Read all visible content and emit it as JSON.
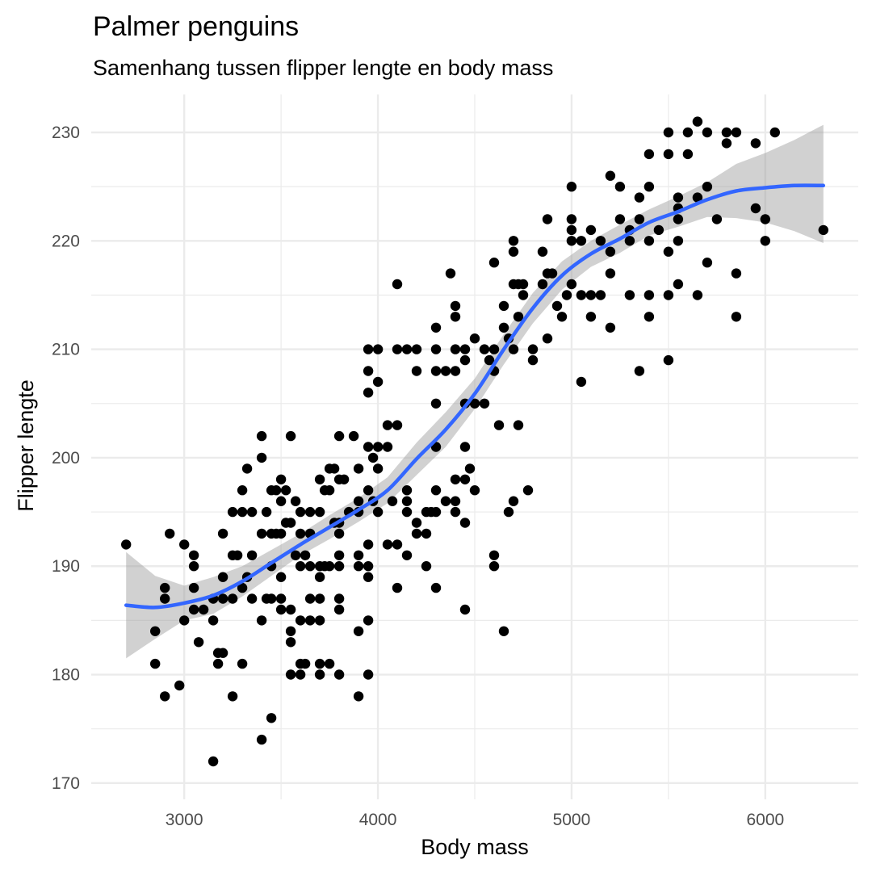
{
  "chart_data": {
    "type": "scatter",
    "title": "Palmer penguins",
    "subtitle": "Samenhang tussen flipper lengte en body mass",
    "xlabel": "Body mass",
    "ylabel": "Flipper lengte",
    "xlim": [
      2520,
      6480
    ],
    "ylim": [
      168.5,
      233.5
    ],
    "x_ticks": [
      3000,
      4000,
      5000,
      6000
    ],
    "y_ticks": [
      170,
      180,
      190,
      200,
      210,
      220,
      230
    ],
    "grid": true,
    "points": [
      [
        2700,
        192
      ],
      [
        2850,
        184
      ],
      [
        2850,
        181
      ],
      [
        2900,
        188
      ],
      [
        2900,
        187
      ],
      [
        2900,
        178
      ],
      [
        2925,
        193
      ],
      [
        2975,
        179
      ],
      [
        3000,
        192
      ],
      [
        3000,
        185
      ],
      [
        3050,
        190
      ],
      [
        3050,
        191
      ],
      [
        3050,
        186
      ],
      [
        3050,
        188
      ],
      [
        3075,
        183
      ],
      [
        3100,
        186
      ],
      [
        3150,
        187
      ],
      [
        3150,
        185
      ],
      [
        3150,
        172
      ],
      [
        3175,
        182
      ],
      [
        3175,
        181
      ],
      [
        3200,
        182
      ],
      [
        3200,
        193
      ],
      [
        3200,
        189
      ],
      [
        3200,
        187
      ],
      [
        3250,
        187
      ],
      [
        3250,
        191
      ],
      [
        3250,
        178
      ],
      [
        3250,
        195
      ],
      [
        3275,
        191
      ],
      [
        3300,
        197
      ],
      [
        3300,
        195
      ],
      [
        3300,
        181
      ],
      [
        3300,
        188
      ],
      [
        3325,
        199
      ],
      [
        3325,
        189
      ],
      [
        3350,
        195
      ],
      [
        3350,
        187
      ],
      [
        3350,
        191
      ],
      [
        3400,
        202
      ],
      [
        3400,
        200
      ],
      [
        3400,
        193
      ],
      [
        3400,
        185
      ],
      [
        3400,
        174
      ],
      [
        3425,
        195
      ],
      [
        3425,
        187
      ],
      [
        3450,
        197
      ],
      [
        3450,
        193
      ],
      [
        3450,
        190
      ],
      [
        3450,
        187
      ],
      [
        3450,
        176
      ],
      [
        3475,
        197
      ],
      [
        3475,
        193
      ],
      [
        3500,
        198
      ],
      [
        3500,
        196
      ],
      [
        3500,
        193
      ],
      [
        3500,
        189
      ],
      [
        3500,
        187
      ],
      [
        3500,
        186
      ],
      [
        3525,
        197
      ],
      [
        3525,
        194
      ],
      [
        3550,
        202
      ],
      [
        3550,
        194
      ],
      [
        3550,
        186
      ],
      [
        3550,
        184
      ],
      [
        3550,
        183
      ],
      [
        3550,
        180
      ],
      [
        3575,
        196
      ],
      [
        3575,
        191
      ],
      [
        3600,
        195
      ],
      [
        3600,
        193
      ],
      [
        3600,
        190
      ],
      [
        3600,
        185
      ],
      [
        3600,
        181
      ],
      [
        3600,
        180
      ],
      [
        3625,
        191
      ],
      [
        3625,
        181
      ],
      [
        3650,
        195
      ],
      [
        3650,
        193
      ],
      [
        3650,
        190
      ],
      [
        3650,
        187
      ],
      [
        3650,
        185
      ],
      [
        3700,
        198
      ],
      [
        3700,
        195
      ],
      [
        3700,
        190
      ],
      [
        3700,
        189
      ],
      [
        3700,
        187
      ],
      [
        3700,
        185
      ],
      [
        3700,
        181
      ],
      [
        3700,
        180
      ],
      [
        3725,
        197
      ],
      [
        3725,
        190
      ],
      [
        3750,
        199
      ],
      [
        3750,
        197
      ],
      [
        3750,
        190
      ],
      [
        3750,
        181
      ],
      [
        3775,
        199
      ],
      [
        3775,
        194
      ],
      [
        3800,
        202
      ],
      [
        3800,
        198
      ],
      [
        3800,
        194
      ],
      [
        3800,
        193
      ],
      [
        3800,
        191
      ],
      [
        3800,
        190
      ],
      [
        3800,
        187
      ],
      [
        3800,
        186
      ],
      [
        3800,
        180
      ],
      [
        3825,
        198
      ],
      [
        3850,
        195
      ],
      [
        3875,
        202
      ],
      [
        3900,
        199
      ],
      [
        3900,
        196
      ],
      [
        3900,
        195
      ],
      [
        3900,
        191
      ],
      [
        3900,
        190
      ],
      [
        3900,
        184
      ],
      [
        3900,
        178
      ],
      [
        3950,
        210
      ],
      [
        3950,
        208
      ],
      [
        3950,
        206
      ],
      [
        3950,
        201
      ],
      [
        3950,
        197
      ],
      [
        3950,
        192
      ],
      [
        3950,
        190
      ],
      [
        3950,
        189
      ],
      [
        3950,
        185
      ],
      [
        3950,
        180
      ],
      [
        3975,
        200
      ],
      [
        3975,
        196
      ],
      [
        4000,
        210
      ],
      [
        4000,
        207
      ],
      [
        4000,
        201
      ],
      [
        4000,
        199
      ],
      [
        4000,
        195
      ],
      [
        4050,
        203
      ],
      [
        4050,
        201
      ],
      [
        4050,
        192
      ],
      [
        4075,
        196
      ],
      [
        4100,
        216
      ],
      [
        4100,
        210
      ],
      [
        4100,
        203
      ],
      [
        4100,
        192
      ],
      [
        4100,
        188
      ],
      [
        4150,
        210
      ],
      [
        4150,
        197
      ],
      [
        4150,
        196
      ],
      [
        4150,
        195
      ],
      [
        4150,
        191
      ],
      [
        4200,
        210
      ],
      [
        4200,
        208
      ],
      [
        4200,
        194
      ],
      [
        4200,
        193
      ],
      [
        4250,
        195
      ],
      [
        4250,
        193
      ],
      [
        4250,
        190
      ],
      [
        4275,
        195
      ],
      [
        4300,
        212
      ],
      [
        4300,
        210
      ],
      [
        4300,
        208
      ],
      [
        4300,
        205
      ],
      [
        4300,
        201
      ],
      [
        4300,
        197
      ],
      [
        4300,
        195
      ],
      [
        4300,
        188
      ],
      [
        4350,
        208
      ],
      [
        4350,
        196
      ],
      [
        4375,
        217
      ],
      [
        4400,
        214
      ],
      [
        4400,
        213
      ],
      [
        4400,
        210
      ],
      [
        4400,
        208
      ],
      [
        4400,
        198
      ],
      [
        4400,
        196
      ],
      [
        4400,
        195
      ],
      [
        4450,
        210
      ],
      [
        4450,
        209
      ],
      [
        4450,
        205
      ],
      [
        4450,
        201
      ],
      [
        4450,
        198
      ],
      [
        4450,
        194
      ],
      [
        4450,
        186
      ],
      [
        4475,
        199
      ],
      [
        4500,
        211
      ],
      [
        4500,
        205
      ],
      [
        4500,
        197
      ],
      [
        4550,
        210
      ],
      [
        4550,
        205
      ],
      [
        4575,
        209
      ],
      [
        4600,
        218
      ],
      [
        4600,
        210
      ],
      [
        4600,
        208
      ],
      [
        4600,
        191
      ],
      [
        4600,
        190
      ],
      [
        4625,
        203
      ],
      [
        4650,
        214
      ],
      [
        4650,
        212
      ],
      [
        4650,
        184
      ],
      [
        4675,
        211
      ],
      [
        4675,
        195
      ],
      [
        4700,
        220
      ],
      [
        4700,
        219
      ],
      [
        4700,
        216
      ],
      [
        4700,
        210
      ],
      [
        4700,
        196
      ],
      [
        4725,
        216
      ],
      [
        4725,
        213
      ],
      [
        4725,
        203
      ],
      [
        4750,
        216
      ],
      [
        4750,
        215
      ],
      [
        4775,
        197
      ],
      [
        4800,
        210
      ],
      [
        4800,
        209
      ],
      [
        4850,
        219
      ],
      [
        4850,
        216
      ],
      [
        4875,
        222
      ],
      [
        4875,
        217
      ],
      [
        4875,
        211
      ],
      [
        4900,
        217
      ],
      [
        4925,
        214
      ],
      [
        4950,
        213
      ],
      [
        4975,
        215
      ],
      [
        5000,
        225
      ],
      [
        5000,
        222
      ],
      [
        5000,
        221
      ],
      [
        5000,
        220
      ],
      [
        5000,
        216
      ],
      [
        5050,
        220
      ],
      [
        5050,
        215
      ],
      [
        5050,
        207
      ],
      [
        5100,
        221
      ],
      [
        5100,
        215
      ],
      [
        5100,
        213
      ],
      [
        5150,
        220
      ],
      [
        5150,
        215
      ],
      [
        5200,
        226
      ],
      [
        5200,
        219
      ],
      [
        5200,
        217
      ],
      [
        5200,
        212
      ],
      [
        5250,
        225
      ],
      [
        5250,
        222
      ],
      [
        5300,
        221
      ],
      [
        5300,
        220
      ],
      [
        5300,
        215
      ],
      [
        5350,
        224
      ],
      [
        5350,
        222
      ],
      [
        5350,
        208
      ],
      [
        5400,
        228
      ],
      [
        5400,
        225
      ],
      [
        5400,
        220
      ],
      [
        5400,
        215
      ],
      [
        5400,
        213
      ],
      [
        5450,
        221
      ],
      [
        5500,
        230
      ],
      [
        5500,
        228
      ],
      [
        5500,
        219
      ],
      [
        5500,
        215
      ],
      [
        5500,
        209
      ],
      [
        5550,
        224
      ],
      [
        5550,
        223
      ],
      [
        5550,
        222
      ],
      [
        5550,
        220
      ],
      [
        5550,
        216
      ],
      [
        5600,
        230
      ],
      [
        5600,
        228
      ],
      [
        5650,
        231
      ],
      [
        5650,
        224
      ],
      [
        5650,
        215
      ],
      [
        5700,
        230
      ],
      [
        5700,
        225
      ],
      [
        5700,
        218
      ],
      [
        5750,
        222
      ],
      [
        5800,
        230
      ],
      [
        5800,
        229
      ],
      [
        5850,
        230
      ],
      [
        5850,
        217
      ],
      [
        5850,
        213
      ],
      [
        5950,
        229
      ],
      [
        5950,
        223
      ],
      [
        6000,
        222
      ],
      [
        6000,
        220
      ],
      [
        6050,
        230
      ],
      [
        6300,
        221
      ]
    ],
    "smooth": {
      "color": "#3366ff",
      "band_color": "#999999",
      "fit": [
        [
          2700,
          186.4
        ],
        [
          2850,
          186.2
        ],
        [
          3000,
          186.6
        ],
        [
          3150,
          187.3
        ],
        [
          3300,
          188.6
        ],
        [
          3450,
          190.3
        ],
        [
          3600,
          192.0
        ],
        [
          3750,
          193.6
        ],
        [
          3900,
          195.2
        ],
        [
          4050,
          197.0
        ],
        [
          4200,
          199.9
        ],
        [
          4350,
          202.6
        ],
        [
          4500,
          205.9
        ],
        [
          4650,
          210.0
        ],
        [
          4800,
          213.8
        ],
        [
          4950,
          216.8
        ],
        [
          5100,
          218.8
        ],
        [
          5250,
          220.2
        ],
        [
          5400,
          221.7
        ],
        [
          5550,
          222.7
        ],
        [
          5700,
          223.8
        ],
        [
          5850,
          224.6
        ],
        [
          6000,
          224.9
        ],
        [
          6150,
          225.1
        ],
        [
          6300,
          225.1
        ]
      ],
      "lower": [
        [
          2700,
          181.5
        ],
        [
          2850,
          183.3
        ],
        [
          3000,
          185.0
        ],
        [
          3150,
          185.6
        ],
        [
          3300,
          187.2
        ],
        [
          3450,
          189.1
        ],
        [
          3600,
          191.0
        ],
        [
          3750,
          192.5
        ],
        [
          3900,
          194.1
        ],
        [
          4050,
          195.8
        ],
        [
          4200,
          198.4
        ],
        [
          4350,
          201.0
        ],
        [
          4500,
          204.5
        ],
        [
          4650,
          208.6
        ],
        [
          4800,
          212.4
        ],
        [
          4950,
          215.5
        ],
        [
          5100,
          217.6
        ],
        [
          5250,
          218.9
        ],
        [
          5400,
          220.5
        ],
        [
          5550,
          221.3
        ],
        [
          5700,
          222.2
        ],
        [
          5850,
          222.1
        ],
        [
          6000,
          221.7
        ],
        [
          6150,
          220.9
        ],
        [
          6300,
          219.8
        ]
      ],
      "upper": [
        [
          2700,
          191.3
        ],
        [
          2850,
          189.1
        ],
        [
          3000,
          188.2
        ],
        [
          3150,
          189.0
        ],
        [
          3300,
          190.0
        ],
        [
          3450,
          191.5
        ],
        [
          3600,
          193.0
        ],
        [
          3750,
          194.7
        ],
        [
          3900,
          196.3
        ],
        [
          4050,
          198.2
        ],
        [
          4200,
          201.4
        ],
        [
          4350,
          204.2
        ],
        [
          4500,
          207.3
        ],
        [
          4650,
          211.4
        ],
        [
          4800,
          215.2
        ],
        [
          4950,
          218.1
        ],
        [
          5100,
          220.0
        ],
        [
          5250,
          221.5
        ],
        [
          5400,
          222.9
        ],
        [
          5550,
          224.1
        ],
        [
          5700,
          225.4
        ],
        [
          5850,
          227.1
        ],
        [
          6000,
          228.1
        ],
        [
          6150,
          229.3
        ],
        [
          6300,
          230.7
        ]
      ]
    }
  }
}
